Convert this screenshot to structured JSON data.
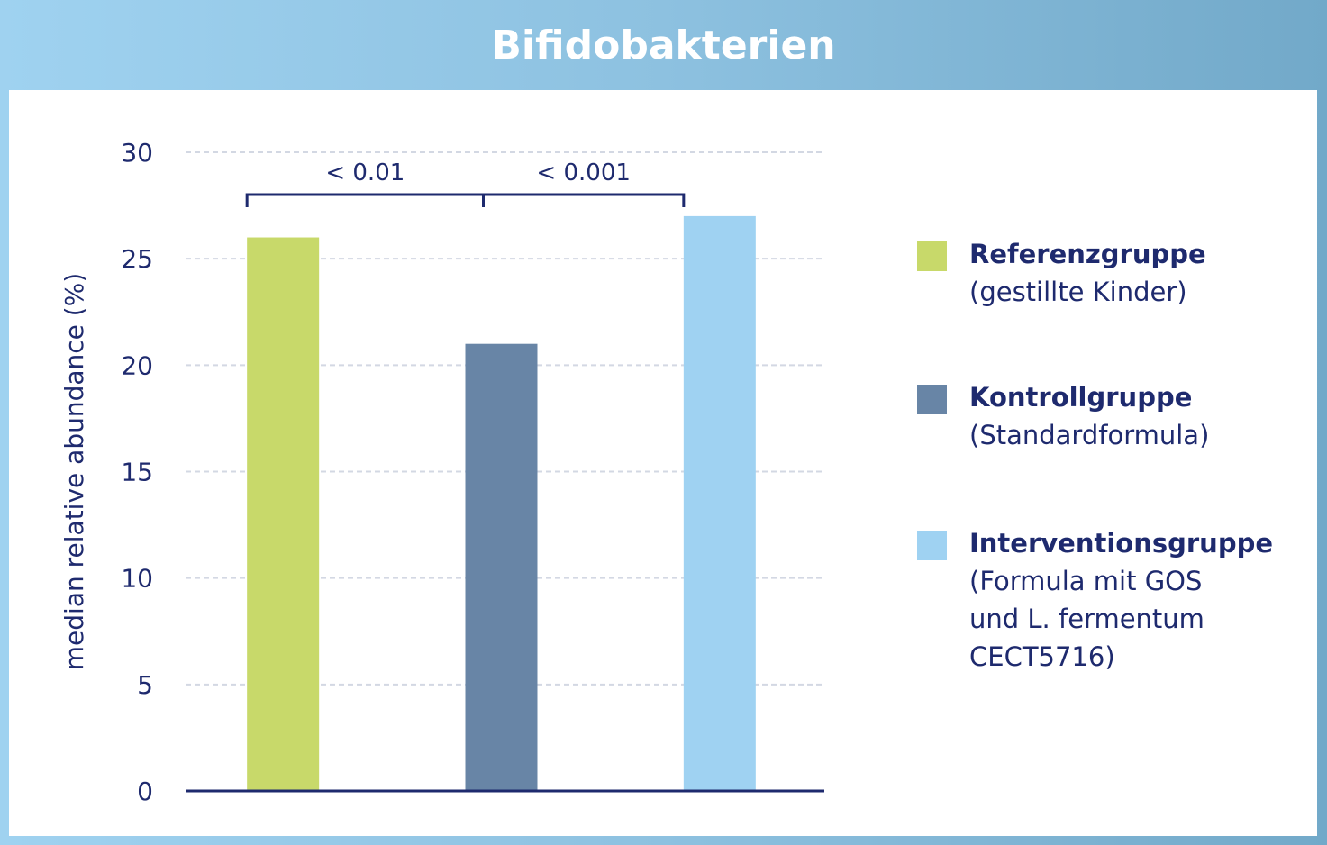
{
  "title": "Bifidobakterien",
  "colors": {
    "text": "#1e2a6e",
    "grid": "#d3d8e3",
    "axis": "#1e2a6e"
  },
  "chart_data": {
    "type": "bar",
    "categories": [
      "Referenzgruppe",
      "Kontrollgruppe",
      "Interventionsgruppe"
    ],
    "values": [
      26,
      21,
      27
    ],
    "colors": [
      "#c8d96a",
      "#6885a6",
      "#9fd2f2"
    ],
    "ylabel": "median relative abundance (%)",
    "xlabel": "",
    "ylim": [
      0,
      30
    ],
    "yticks": [
      "0",
      "5",
      "10",
      "15",
      "20",
      "25",
      "30"
    ],
    "grid": true,
    "legend_position": "right",
    "annotations": [
      {
        "text": "< 0.01",
        "from": 0,
        "to": 1
      },
      {
        "text": "< 0.001",
        "from": 1,
        "to": 2
      }
    ]
  },
  "legend": [
    {
      "name": "Referenzgruppe",
      "sub": [
        "(gestillte Kinder)"
      ],
      "color": "#c8d96a"
    },
    {
      "name": "Kontrollgruppe",
      "sub": [
        "(Standardformula)"
      ],
      "color": "#6885a6"
    },
    {
      "name": "Interventionsgruppe",
      "sub": [
        "(Formula mit GOS",
        "und L. fermentum",
        "CECT5716)"
      ],
      "color": "#9fd2f2"
    }
  ]
}
